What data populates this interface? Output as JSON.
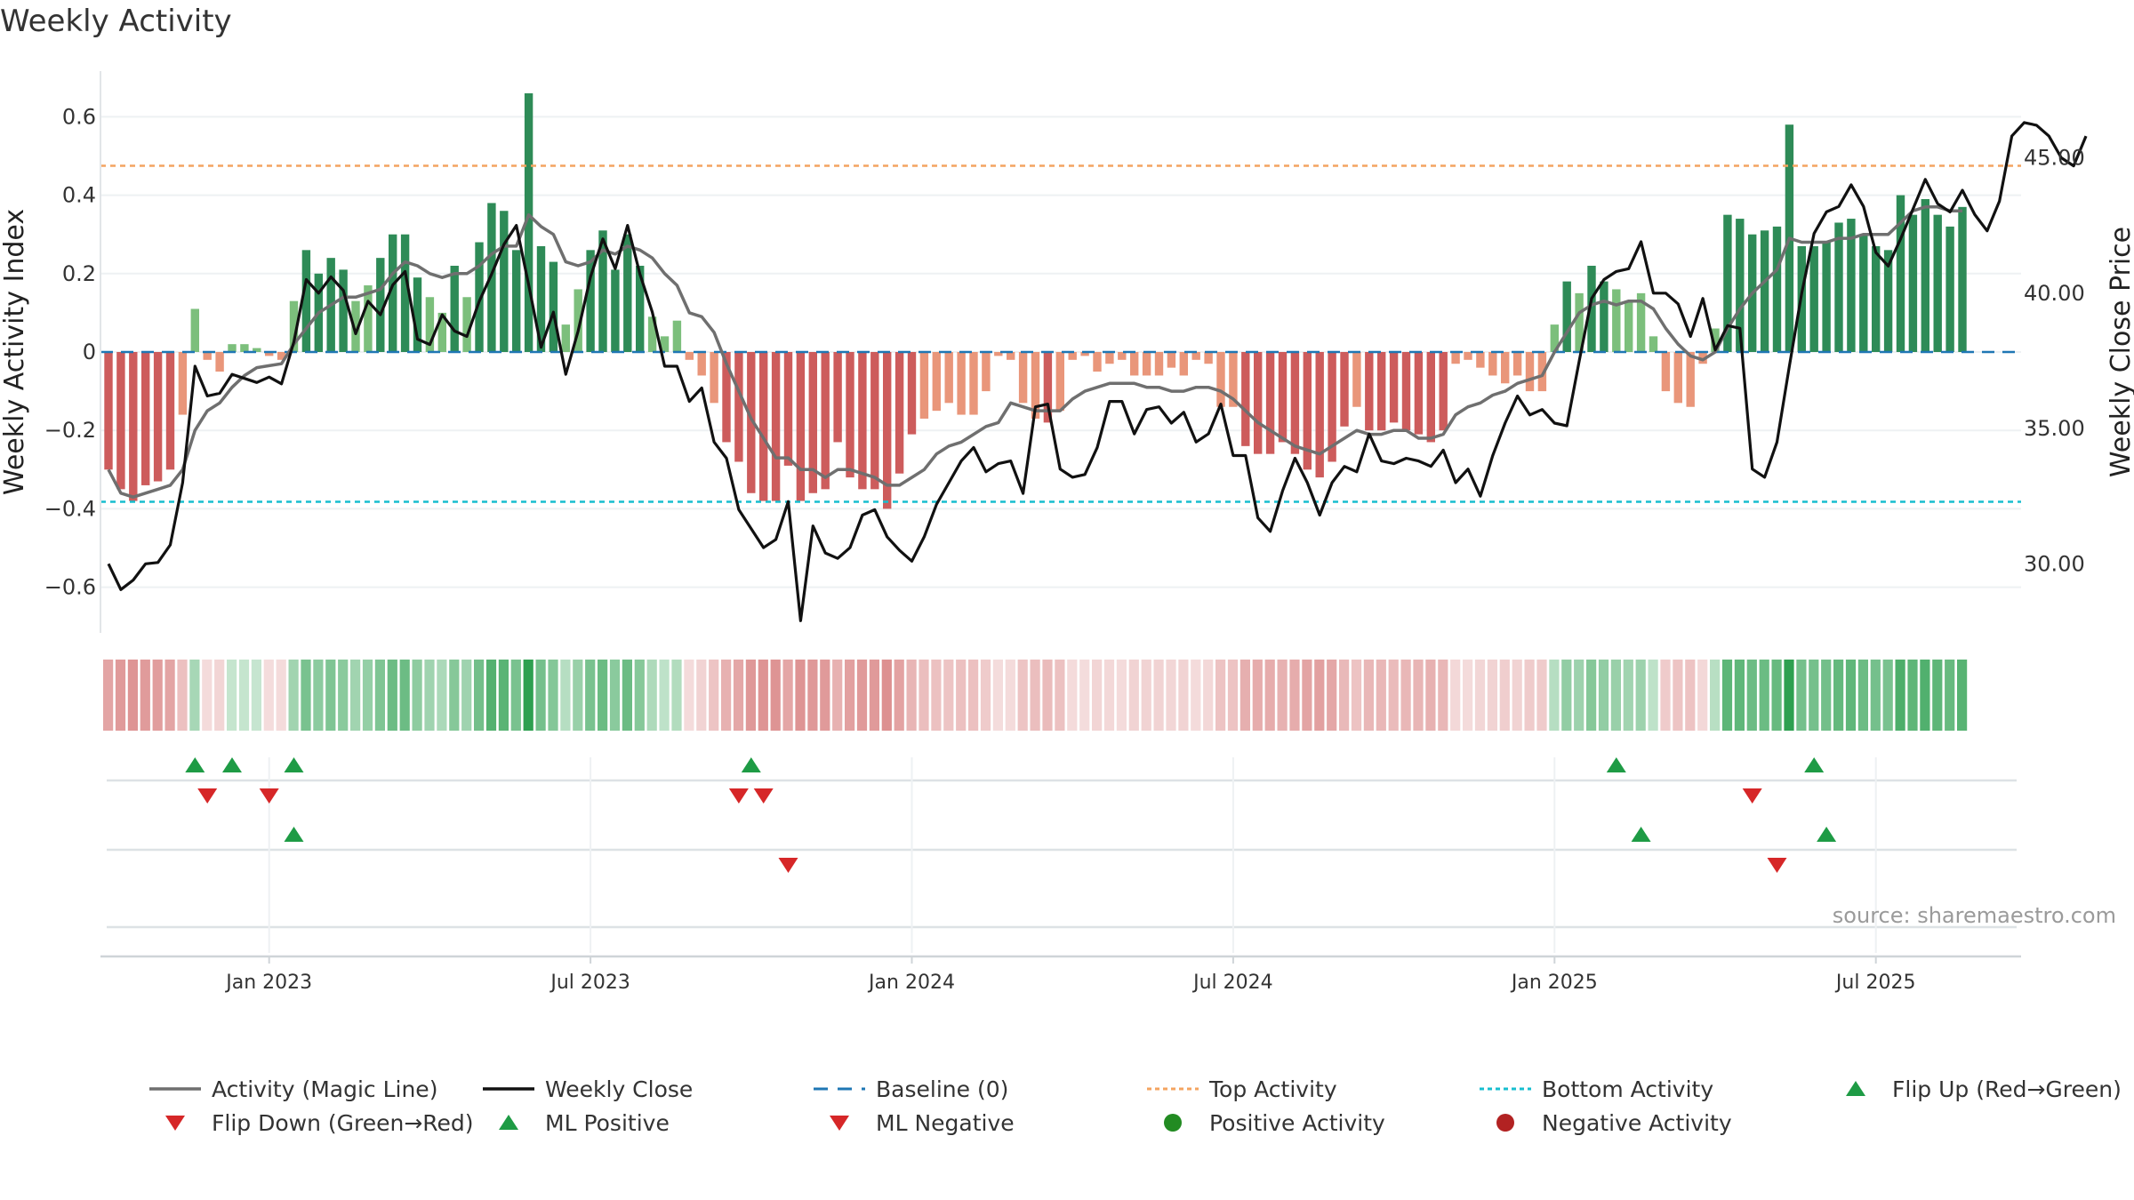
{
  "title": "Weekly Activity",
  "source": "source: sharemaestro.com",
  "chart_data": {
    "type": "bar+line",
    "title": "Weekly Activity",
    "ylabel_left": "Weekly Activity Index",
    "ylabel_right": "Weekly Close Price",
    "ylim_left": [
      -0.72,
      0.72
    ],
    "yticks_left": [
      {
        "v": 0.6,
        "label": "0.6"
      },
      {
        "v": 0.4,
        "label": "0.4"
      },
      {
        "v": 0.2,
        "label": "0.2"
      },
      {
        "v": 0.0,
        "label": "0"
      },
      {
        "v": -0.2,
        "label": "−0.2"
      },
      {
        "v": -0.4,
        "label": "−0.4"
      },
      {
        "v": -0.6,
        "label": "−0.6"
      }
    ],
    "ylim_right": [
      27.45,
      48.2
    ],
    "yticks_right": [
      {
        "v": 45,
        "label": "45.00"
      },
      {
        "v": 40,
        "label": "40.00"
      },
      {
        "v": 35,
        "label": "35.00"
      },
      {
        "v": 30,
        "label": "30.00"
      }
    ],
    "x_start": "2022-10-07",
    "x_end": "2025-09-26",
    "date_ticks": [
      {
        "index": 13,
        "label": "Jan 2023"
      },
      {
        "index": 39,
        "label": "Jul 2023"
      },
      {
        "index": 65,
        "label": "Jan 2024"
      },
      {
        "index": 91,
        "label": "Jul 2024"
      },
      {
        "index": 117,
        "label": "Jan 2025"
      },
      {
        "index": 143,
        "label": "Jul 2025"
      }
    ],
    "top_activity": 0.475,
    "bottom_activity": -0.382,
    "activity": [
      -0.3,
      -0.35,
      -0.38,
      -0.34,
      -0.33,
      -0.3,
      -0.16,
      0.11,
      -0.02,
      -0.05,
      0.02,
      0.02,
      0.01,
      -0.01,
      -0.02,
      0.13,
      0.26,
      0.2,
      0.24,
      0.21,
      0.13,
      0.17,
      0.24,
      0.3,
      0.3,
      0.19,
      0.14,
      0.1,
      0.22,
      0.14,
      0.28,
      0.38,
      0.36,
      0.26,
      0.66,
      0.27,
      0.23,
      0.07,
      0.16,
      0.26,
      0.31,
      0.21,
      0.3,
      0.22,
      0.09,
      0.04,
      0.08,
      -0.02,
      -0.06,
      -0.13,
      -0.23,
      -0.28,
      -0.36,
      -0.38,
      -0.38,
      -0.29,
      -0.38,
      -0.36,
      -0.35,
      -0.23,
      -0.32,
      -0.35,
      -0.35,
      -0.4,
      -0.31,
      -0.21,
      -0.17,
      -0.15,
      -0.13,
      -0.16,
      -0.16,
      -0.1,
      -0.01,
      -0.02,
      -0.13,
      -0.17,
      -0.18,
      -0.15,
      -0.02,
      -0.01,
      -0.05,
      -0.03,
      -0.02,
      -0.06,
      -0.06,
      -0.06,
      -0.04,
      -0.06,
      -0.02,
      -0.03,
      -0.14,
      -0.14,
      -0.24,
      -0.26,
      -0.26,
      -0.23,
      -0.26,
      -0.3,
      -0.32,
      -0.28,
      -0.19,
      -0.14,
      -0.2,
      -0.2,
      -0.18,
      -0.2,
      -0.21,
      -0.23,
      -0.2,
      -0.03,
      -0.02,
      -0.04,
      -0.06,
      -0.08,
      -0.06,
      -0.1,
      -0.1,
      0.07,
      0.18,
      0.15,
      0.22,
      0.18,
      0.16,
      0.13,
      0.15,
      0.04,
      -0.1,
      -0.13,
      -0.14,
      -0.03,
      0.06,
      0.35,
      0.34,
      0.3,
      0.31,
      0.32,
      0.58,
      0.27,
      0.27,
      0.28,
      0.33,
      0.34,
      0.3,
      0.27,
      0.26,
      0.4,
      0.35,
      0.39,
      0.35,
      0.32,
      0.37
    ],
    "close": [
      30.0,
      29.05,
      29.4,
      30.0,
      30.05,
      30.7,
      33.0,
      37.3,
      36.2,
      36.3,
      37.0,
      36.85,
      36.7,
      36.9,
      36.65,
      38.2,
      40.5,
      40.0,
      40.6,
      40.1,
      38.5,
      39.7,
      39.2,
      40.3,
      40.8,
      38.3,
      38.1,
      39.2,
      38.6,
      38.4,
      39.7,
      40.7,
      41.8,
      42.5,
      40.3,
      38.0,
      39.3,
      37.0,
      38.6,
      40.6,
      42.0,
      40.9,
      42.5,
      40.7,
      39.3,
      37.3,
      37.3,
      36.0,
      36.5,
      34.5,
      33.9,
      32.0,
      31.3,
      30.6,
      30.9,
      32.3,
      27.9,
      31.4,
      30.4,
      30.2,
      30.6,
      31.8,
      32.0,
      31.0,
      30.5,
      30.1,
      31.0,
      32.2,
      33.0,
      33.8,
      34.3,
      33.4,
      33.7,
      33.8,
      32.6,
      35.8,
      35.9,
      33.5,
      33.2,
      33.3,
      34.3,
      36.0,
      36.0,
      34.8,
      35.7,
      35.8,
      35.2,
      35.6,
      34.5,
      34.8,
      35.9,
      34.0,
      34.0,
      31.7,
      31.2,
      32.7,
      33.9,
      33.0,
      31.8,
      33.0,
      33.6,
      33.4,
      34.8,
      33.8,
      33.7,
      33.9,
      33.8,
      33.6,
      34.2,
      33.0,
      33.5,
      32.5,
      34.0,
      35.2,
      36.2,
      35.5,
      35.7,
      35.2,
      35.1,
      37.5,
      39.8,
      40.5,
      40.8,
      40.9,
      41.9,
      40.0,
      40.0,
      39.6,
      38.4,
      39.8,
      37.9,
      38.8,
      38.7,
      33.5,
      33.2,
      34.5,
      37.3,
      40.0,
      42.2,
      43.0,
      43.2,
      44.0,
      43.2,
      41.5,
      41.0,
      42.0,
      43.1,
      44.2,
      43.3,
      43.0,
      43.8,
      42.9,
      42.3,
      43.4,
      45.8,
      46.3,
      46.2,
      45.8,
      45.0,
      44.7,
      45.8
    ],
    "magic_line": [
      -0.3,
      -0.36,
      -0.37,
      -0.36,
      -0.35,
      -0.34,
      -0.3,
      -0.2,
      -0.15,
      -0.13,
      -0.09,
      -0.06,
      -0.04,
      -0.035,
      -0.03,
      0.02,
      0.06,
      0.1,
      0.12,
      0.14,
      0.14,
      0.15,
      0.16,
      0.2,
      0.23,
      0.22,
      0.2,
      0.19,
      0.2,
      0.2,
      0.22,
      0.25,
      0.27,
      0.27,
      0.35,
      0.32,
      0.3,
      0.23,
      0.22,
      0.23,
      0.26,
      0.25,
      0.27,
      0.26,
      0.24,
      0.2,
      0.17,
      0.1,
      0.09,
      0.05,
      -0.03,
      -0.1,
      -0.17,
      -0.22,
      -0.27,
      -0.27,
      -0.3,
      -0.3,
      -0.32,
      -0.3,
      -0.3,
      -0.31,
      -0.32,
      -0.34,
      -0.34,
      -0.32,
      -0.3,
      -0.26,
      -0.24,
      -0.23,
      -0.21,
      -0.19,
      -0.18,
      -0.13,
      -0.14,
      -0.15,
      -0.15,
      -0.15,
      -0.12,
      -0.1,
      -0.09,
      -0.08,
      -0.08,
      -0.08,
      -0.09,
      -0.09,
      -0.1,
      -0.1,
      -0.09,
      -0.09,
      -0.1,
      -0.12,
      -0.15,
      -0.18,
      -0.2,
      -0.22,
      -0.24,
      -0.25,
      -0.26,
      -0.24,
      -0.22,
      -0.2,
      -0.21,
      -0.21,
      -0.2,
      -0.2,
      -0.22,
      -0.22,
      -0.21,
      -0.16,
      -0.14,
      -0.13,
      -0.11,
      -0.1,
      -0.08,
      -0.07,
      -0.06,
      0.0,
      0.05,
      0.1,
      0.12,
      0.13,
      0.12,
      0.13,
      0.13,
      0.11,
      0.06,
      0.02,
      -0.01,
      -0.02,
      0.0,
      0.06,
      0.11,
      0.15,
      0.18,
      0.21,
      0.29,
      0.28,
      0.28,
      0.28,
      0.29,
      0.29,
      0.3,
      0.3,
      0.3,
      0.33,
      0.36,
      0.37,
      0.37,
      0.36,
      0.36
    ],
    "markers": {
      "flip_up": [
        7,
        10,
        15,
        52,
        122,
        138
      ],
      "flip_down": [
        8,
        13,
        51,
        53,
        133
      ],
      "ml_positive": [
        15,
        124,
        139
      ],
      "ml_negative": [
        55,
        135
      ],
      "positive_activity": [],
      "negative_activity": []
    },
    "colors": {
      "pos_strong": "#2e8b57",
      "pos_light": "#7cbf7c",
      "neg_strong": "#cd5c5c",
      "neg_light": "#e9967a",
      "close": "#111111",
      "magic_line": "#6f6f6f",
      "baseline": "#1f77b4",
      "top": "#f4a460",
      "bottom": "#17becf",
      "marker_up": "#1e9b45",
      "marker_down": "#d62728",
      "dot_pos": "#228b22",
      "dot_neg": "#b22222"
    },
    "legend": [
      {
        "label": "Activity (Magic Line)",
        "kind": "line",
        "color": "#6f6f6f"
      },
      {
        "label": "Weekly Close",
        "kind": "line",
        "color": "#111111"
      },
      {
        "label": "Baseline (0)",
        "kind": "dashed",
        "color": "#1f77b4"
      },
      {
        "label": "Top Activity",
        "kind": "dotted",
        "color": "#f4a460"
      },
      {
        "label": "Bottom Activity",
        "kind": "dotted",
        "color": "#17becf"
      },
      {
        "label": "Flip Up (Red→Green)",
        "kind": "tri-up",
        "color": "#1e9b45"
      },
      {
        "label": "Flip Down (Green→Red)",
        "kind": "tri-down",
        "color": "#d62728"
      },
      {
        "label": "ML Positive",
        "kind": "tri-up",
        "color": "#1e9b45"
      },
      {
        "label": "ML Negative",
        "kind": "tri-down",
        "color": "#d62728"
      },
      {
        "label": "Positive Activity",
        "kind": "dot",
        "color": "#228b22"
      },
      {
        "label": "Negative Activity",
        "kind": "dot",
        "color": "#b22222"
      }
    ]
  }
}
